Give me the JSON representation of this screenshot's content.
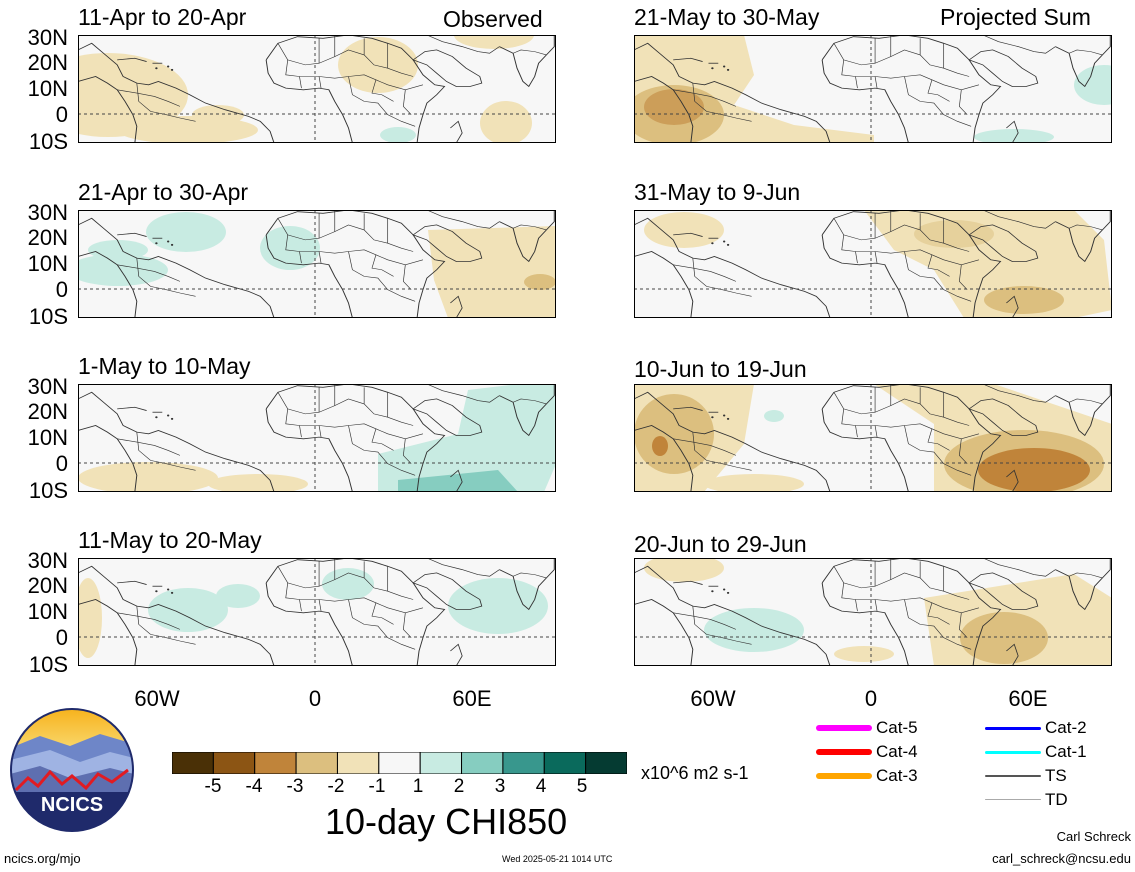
{
  "panels_left": [
    {
      "period": "11-Apr to 20-Apr",
      "tag": "Observed"
    },
    {
      "period": "21-Apr to 30-Apr",
      "tag": ""
    },
    {
      "period": "1-May to 10-May",
      "tag": ""
    },
    {
      "period": "11-May to 20-May",
      "tag": ""
    }
  ],
  "panels_right": [
    {
      "period": "21-May to 30-May",
      "tag": "Projected Sum"
    },
    {
      "period": "31-May to 9-Jun",
      "tag": ""
    },
    {
      "period": "10-Jun to 19-Jun",
      "tag": ""
    },
    {
      "period": "20-Jun to 29-Jun",
      "tag": ""
    }
  ],
  "lat_labels": [
    "30N",
    "20N",
    "10N",
    "0",
    "10S"
  ],
  "lon_labels": [
    "60W",
    "0",
    "60E"
  ],
  "colorbar": {
    "ticks": [
      "-5",
      "-4",
      "-3",
      "-2",
      "-1",
      "1",
      "2",
      "3",
      "4",
      "5"
    ],
    "colors": [
      "#4a3006",
      "#8c5514",
      "#c0843a",
      "#dcbf7f",
      "#f1e2b8",
      "#f7f7f7",
      "#c8ebe2",
      "#86cdc0",
      "#38978d",
      "#0a6a5c",
      "#053b32"
    ],
    "units": "x10^6 m2 s-1",
    "title": "10-day CHI850"
  },
  "legend": [
    {
      "label": "Cat-5",
      "color": "#ff00ff"
    },
    {
      "label": "Cat-4",
      "color": "#ff0000"
    },
    {
      "label": "Cat-3",
      "color": "#ffa500"
    },
    {
      "label": "Cat-2",
      "color": "#0000ff"
    },
    {
      "label": "Cat-1",
      "color": "#00ffff"
    },
    {
      "label": "TS",
      "color": "#555555"
    },
    {
      "label": "TD",
      "color": "#aaaaaa"
    }
  ],
  "logo_text": "NCICS",
  "footer": {
    "site": "ncics.org/mjo",
    "timestamp": "Wed 2025-05-21 1014 UTC",
    "author": "Carl Schreck",
    "email": "carl_schreck@ncsu.edu"
  }
}
